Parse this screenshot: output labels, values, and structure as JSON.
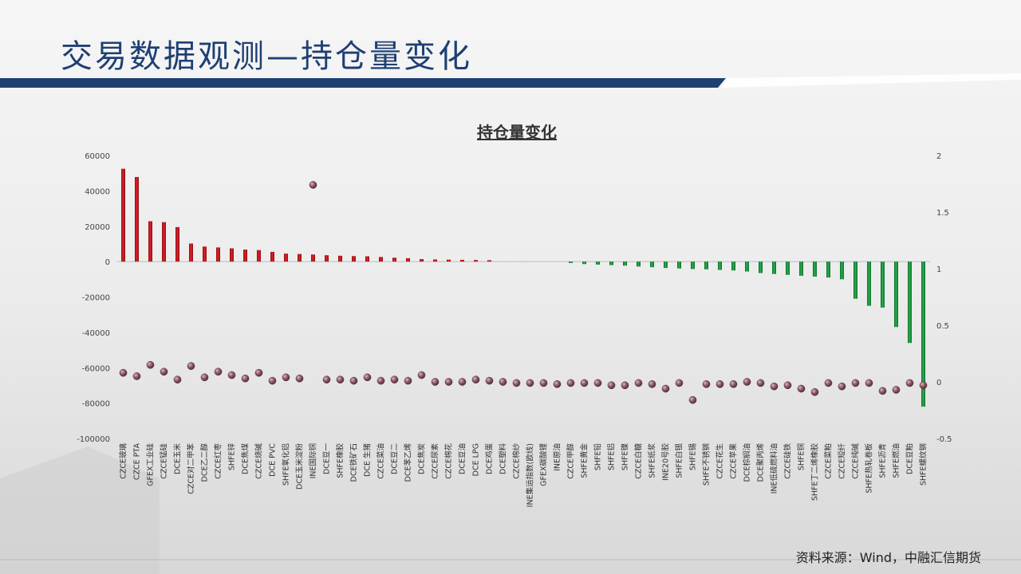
{
  "slide": {
    "title": "交易数据观测—持仓量变化",
    "source": "资料来源：Wind，中融汇信期货"
  },
  "colors": {
    "title": "#1f3f73",
    "banner": "#1f3f73",
    "positive_bar": "#c8141c",
    "negative_bar": "#1a9a3e",
    "dot": "#7a4a56"
  },
  "chart_data": {
    "type": "bar",
    "title": "持仓量变化",
    "xlabel": "",
    "ylabel": "",
    "ylim": [
      -100000,
      60000
    ],
    "y_ticks": [
      60000,
      40000,
      20000,
      0,
      -20000,
      -40000,
      -60000,
      -80000,
      -100000
    ],
    "y2lim": [
      -0.5,
      2
    ],
    "y2_ticks": [
      "2",
      "1.5",
      "1",
      "0.5",
      "0",
      "-0.5"
    ],
    "legend": "none",
    "grid": false,
    "categories": [
      "CZCE玻璃",
      "CZCE PTA",
      "GFEX工业硅",
      "CZCE锰硅",
      "DCE玉米",
      "CZCE对二甲苯",
      "DCE乙二醇",
      "CZCE红枣",
      "SHFE锌",
      "DCE焦煤",
      "CZCE烧碱",
      "DCE PVC",
      "SHFE氧化铝",
      "DCE玉米淀粉",
      "INE国际铜",
      "DCE豆一",
      "SHFE橡胶",
      "DCE铁矿石",
      "DCE 生猪",
      "CZCE菜油",
      "DCE豆二",
      "DCE苯乙烯",
      "DCE焦炭",
      "CZCE尿素",
      "CZCE棉花",
      "DCE豆油",
      "DCE LPG",
      "DCE鸡蛋",
      "DCE塑料",
      "CZCE棉纱",
      "INE集运指数(欧线)",
      "GFEX碳酸锂",
      "INE原油",
      "CZCE甲醇",
      "SHFE黄金",
      "SHFE铅",
      "SHFE铝",
      "SHFE镍",
      "CZCE白糖",
      "SHFE纸浆",
      "INE20号胶",
      "SHFE白银",
      "SHFE锡",
      "SHFE不锈钢",
      "CZCE花生",
      "CZCE苹果",
      "DCE棕榈油",
      "DCE聚丙烯",
      "INE低硫燃料油",
      "CZCE硅铁",
      "SHFE铜",
      "SHFE丁二烯橡胶",
      "CZCE菜粕",
      "CZCE短纤",
      "CZCE纯碱",
      "SHFE热轧卷板",
      "SHFE沥青",
      "SHFE燃油",
      "DCE豆粕",
      "SHFE螺纹钢"
    ],
    "series": [
      {
        "type": "bar",
        "axis": "left",
        "values": [
          52500,
          47800,
          22800,
          22300,
          19500,
          10200,
          8500,
          8000,
          7500,
          6800,
          6500,
          5500,
          4500,
          4300,
          4000,
          3600,
          3300,
          3100,
          3000,
          2600,
          2200,
          1900,
          1400,
          1200,
          1100,
          1000,
          900,
          800,
          0,
          0,
          0,
          0,
          0,
          -800,
          -1400,
          -1700,
          -2000,
          -2300,
          -2800,
          -3200,
          -3600,
          -3900,
          -4200,
          -4400,
          -4700,
          -5000,
          -5600,
          -6500,
          -7000,
          -7500,
          -8000,
          -8500,
          -9000,
          -10000,
          -21000,
          -25000,
          -26000,
          -37000,
          -46000,
          -82000
        ]
      },
      {
        "type": "scatter",
        "axis": "right",
        "values": [
          0.08,
          0.05,
          0.15,
          0.09,
          0.02,
          0.14,
          0.04,
          0.09,
          0.06,
          0.03,
          0.08,
          0.01,
          0.04,
          0.03,
          1.74,
          0.02,
          0.02,
          0.01,
          0.04,
          0.01,
          0.02,
          0.01,
          0.06,
          0.0,
          0.0,
          0.0,
          0.02,
          0.01,
          0.0,
          -0.01,
          -0.01,
          -0.01,
          -0.02,
          -0.01,
          -0.01,
          -0.01,
          -0.03,
          -0.03,
          -0.01,
          -0.02,
          -0.06,
          -0.01,
          -0.16,
          -0.02,
          -0.02,
          -0.02,
          0.0,
          -0.01,
          -0.04,
          -0.03,
          -0.06,
          -0.09,
          -0.01,
          -0.04,
          -0.01,
          -0.01,
          -0.08,
          -0.07,
          -0.01,
          -0.03
        ]
      }
    ]
  }
}
